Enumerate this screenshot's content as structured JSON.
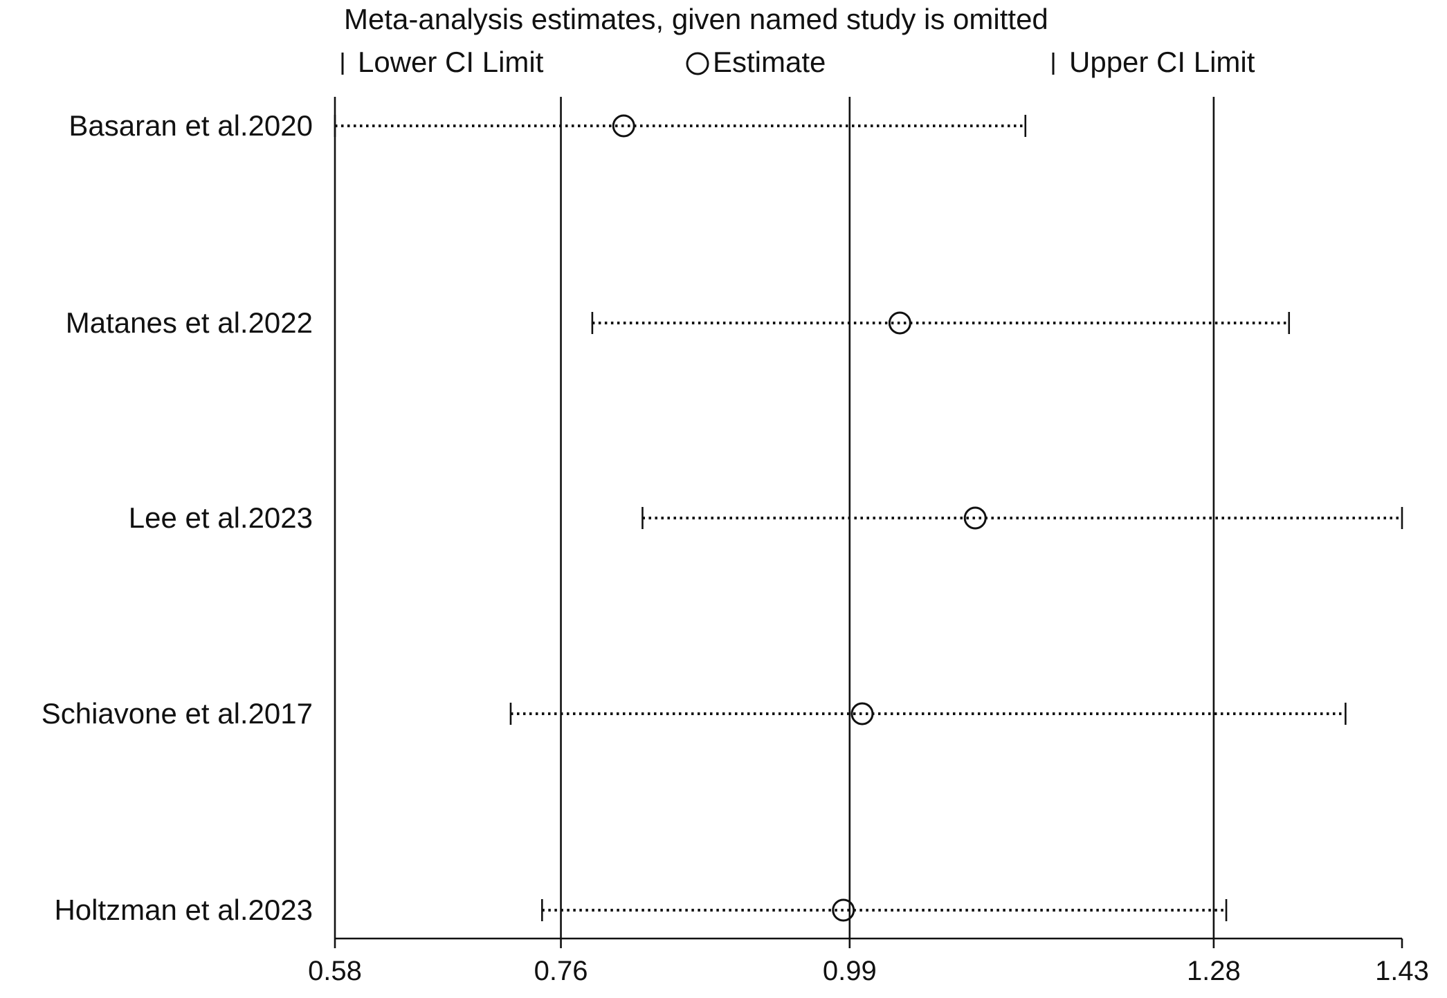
{
  "chart_data": {
    "type": "scatter",
    "title": "Meta-analysis estimates, given named study is omitted",
    "legend": {
      "placement": "top",
      "entries": [
        {
          "symbol": "tick",
          "label": "Lower CI Limit"
        },
        {
          "symbol": "circle",
          "label": "Estimate"
        },
        {
          "symbol": "tick",
          "label": "Upper CI Limit"
        }
      ]
    },
    "xlim": [
      0.58,
      1.43
    ],
    "xticks": [
      {
        "value": 0.58,
        "label": "0.58"
      },
      {
        "value": 0.76,
        "label": "0.76"
      },
      {
        "value": 0.99,
        "label": "0.99"
      },
      {
        "value": 1.28,
        "label": "1.28"
      },
      {
        "value": 1.43,
        "label": "1.43"
      }
    ],
    "reference_lines": [
      0.58,
      0.76,
      0.99,
      1.28
    ],
    "studies": [
      {
        "name": "Basaran et al.2020",
        "lower": 0.58,
        "estimate": 0.81,
        "upper": 1.13
      },
      {
        "name": "Matanes et al.2022",
        "lower": 0.785,
        "estimate": 1.03,
        "upper": 1.34
      },
      {
        "name": "Lee et al.2023",
        "lower": 0.825,
        "estimate": 1.09,
        "upper": 1.43
      },
      {
        "name": "Schiavone et al.2017",
        "lower": 0.72,
        "estimate": 1.0,
        "upper": 1.385
      },
      {
        "name": "Holtzman et al.2023",
        "lower": 0.745,
        "estimate": 0.985,
        "upper": 1.29
      }
    ],
    "colors": {
      "ink": "#111111",
      "background": "#ffffff"
    }
  }
}
